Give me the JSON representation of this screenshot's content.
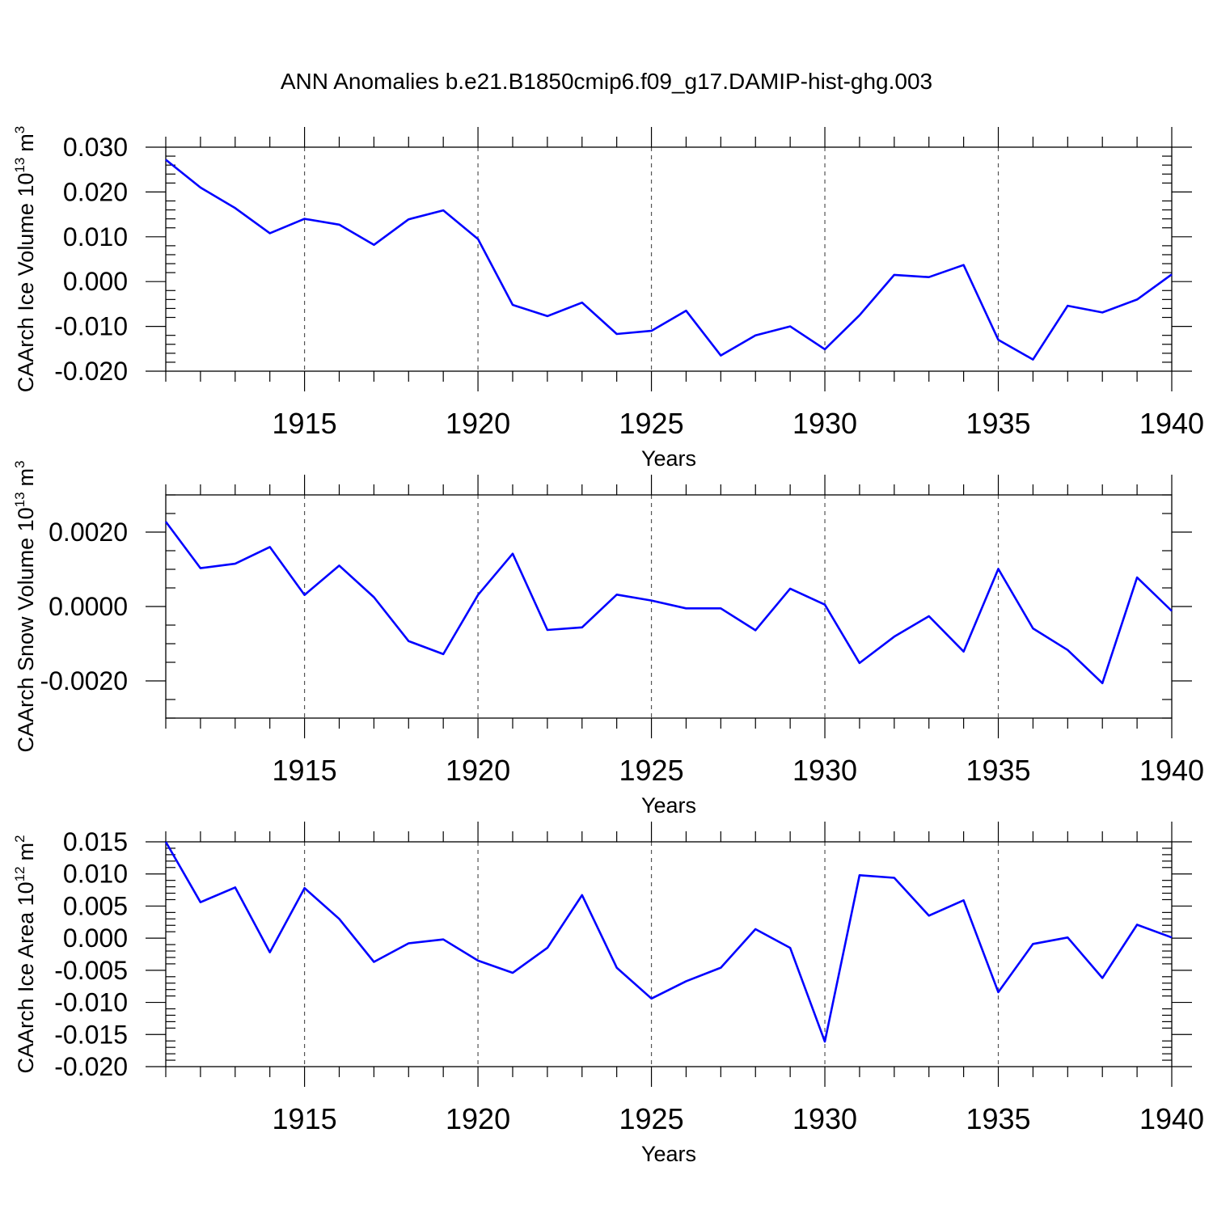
{
  "title": "ANN Anomalies b.e21.B1850cmip6.f09_g17.DAMIP-hist-ghg.003",
  "colors": {
    "line": "#0000ff",
    "axis": "#000000",
    "grid": "#555555",
    "background": "#ffffff"
  },
  "chart_data": [
    {
      "type": "line",
      "ylabel": "CAArch Ice Volume 10",
      "ylabel_exp": "13",
      "ylabel_unit": "m",
      "ylabel_unit_exp": "3",
      "xlabel": "Years",
      "xlim": [
        1911,
        1940
      ],
      "ylim": [
        -0.02,
        0.03
      ],
      "ymajor": [
        -0.02,
        -0.01,
        0.0,
        0.01,
        0.02,
        0.03
      ],
      "ytick_labels": [
        "-0.020",
        "-0.010",
        "0.000",
        "0.010",
        "0.020",
        "0.030"
      ],
      "yminor_step": 0.002,
      "xtick_labels": [
        "1915",
        "1920",
        "1925",
        "1930",
        "1935",
        "1940"
      ],
      "x": [
        1911,
        1912,
        1913,
        1914,
        1915,
        1916,
        1917,
        1918,
        1919,
        1920,
        1921,
        1922,
        1923,
        1924,
        1925,
        1926,
        1927,
        1928,
        1929,
        1930,
        1931,
        1932,
        1933,
        1934,
        1935,
        1936,
        1937,
        1938,
        1939,
        1940
      ],
      "y": [
        0.0272,
        0.021,
        0.0164,
        0.0108,
        0.014,
        0.0127,
        0.0082,
        0.0139,
        0.0159,
        0.0095,
        -0.0052,
        -0.0077,
        -0.0047,
        -0.0117,
        -0.011,
        -0.0065,
        -0.0165,
        -0.012,
        -0.01,
        -0.0151,
        -0.0075,
        0.0015,
        0.001,
        0.0037,
        -0.013,
        -0.0174,
        -0.0054,
        -0.0069,
        -0.004,
        0.0016
      ]
    },
    {
      "type": "line",
      "ylabel": "CAArch Snow Volume 10",
      "ylabel_exp": "13",
      "ylabel_unit": "m",
      "ylabel_unit_exp": "3",
      "xlabel": "Years",
      "xlim": [
        1911,
        1940
      ],
      "ylim": [
        -0.003,
        0.003
      ],
      "ymajor": [
        -0.002,
        0.0,
        0.002
      ],
      "ytick_labels": [
        "-0.0020",
        "0.0000",
        "0.0020"
      ],
      "yminor_step": 0.0005,
      "xtick_labels": [
        "1915",
        "1920",
        "1925",
        "1930",
        "1935",
        "1940"
      ],
      "x": [
        1911,
        1912,
        1913,
        1914,
        1915,
        1916,
        1917,
        1918,
        1919,
        1920,
        1921,
        1922,
        1923,
        1924,
        1925,
        1926,
        1927,
        1928,
        1929,
        1930,
        1931,
        1932,
        1933,
        1934,
        1935,
        1936,
        1937,
        1938,
        1939,
        1940
      ],
      "y": [
        0.00228,
        0.00103,
        0.00115,
        0.0016,
        0.00031,
        0.0011,
        0.00025,
        -0.00093,
        -0.00128,
        0.00031,
        0.00142,
        -0.00063,
        -0.00056,
        0.00032,
        0.00016,
        -5e-05,
        -5e-05,
        -0.00064,
        0.00048,
        5e-05,
        -0.00152,
        -0.00081,
        -0.00026,
        -0.00121,
        0.00101,
        -0.00059,
        -0.00117,
        -0.00206,
        0.00078,
        -0.00012
      ]
    },
    {
      "type": "line",
      "ylabel": "CAArch Ice Area 10",
      "ylabel_exp": "12",
      "ylabel_unit": "m",
      "ylabel_unit_exp": "2",
      "xlabel": "Years",
      "xlim": [
        1911,
        1940
      ],
      "ylim": [
        -0.02,
        0.015
      ],
      "ymajor": [
        -0.02,
        -0.015,
        -0.01,
        -0.005,
        0.0,
        0.005,
        0.01,
        0.015
      ],
      "ytick_labels": [
        "-0.020",
        "-0.015",
        "-0.010",
        "-0.005",
        "0.000",
        "0.005",
        "0.010",
        "0.015"
      ],
      "yminor_step": 0.001,
      "xtick_labels": [
        "1915",
        "1920",
        "1925",
        "1930",
        "1935",
        "1940"
      ],
      "x": [
        1911,
        1912,
        1913,
        1914,
        1915,
        1916,
        1917,
        1918,
        1919,
        1920,
        1921,
        1922,
        1923,
        1924,
        1925,
        1926,
        1927,
        1928,
        1929,
        1930,
        1931,
        1932,
        1933,
        1934,
        1935,
        1936,
        1937,
        1938,
        1939,
        1940
      ],
      "y": [
        0.015,
        0.0056,
        0.0079,
        -0.0022,
        0.0078,
        0.003,
        -0.0037,
        -0.0008,
        -0.0002,
        -0.0035,
        -0.0054,
        -0.0015,
        0.0067,
        -0.0046,
        -0.0094,
        -0.0067,
        -0.0046,
        0.0014,
        -0.0015,
        -0.0161,
        0.0098,
        0.0094,
        0.0035,
        0.0059,
        -0.0084,
        -0.0009,
        0.0001,
        -0.0062,
        0.0021,
        0.0001
      ]
    }
  ]
}
